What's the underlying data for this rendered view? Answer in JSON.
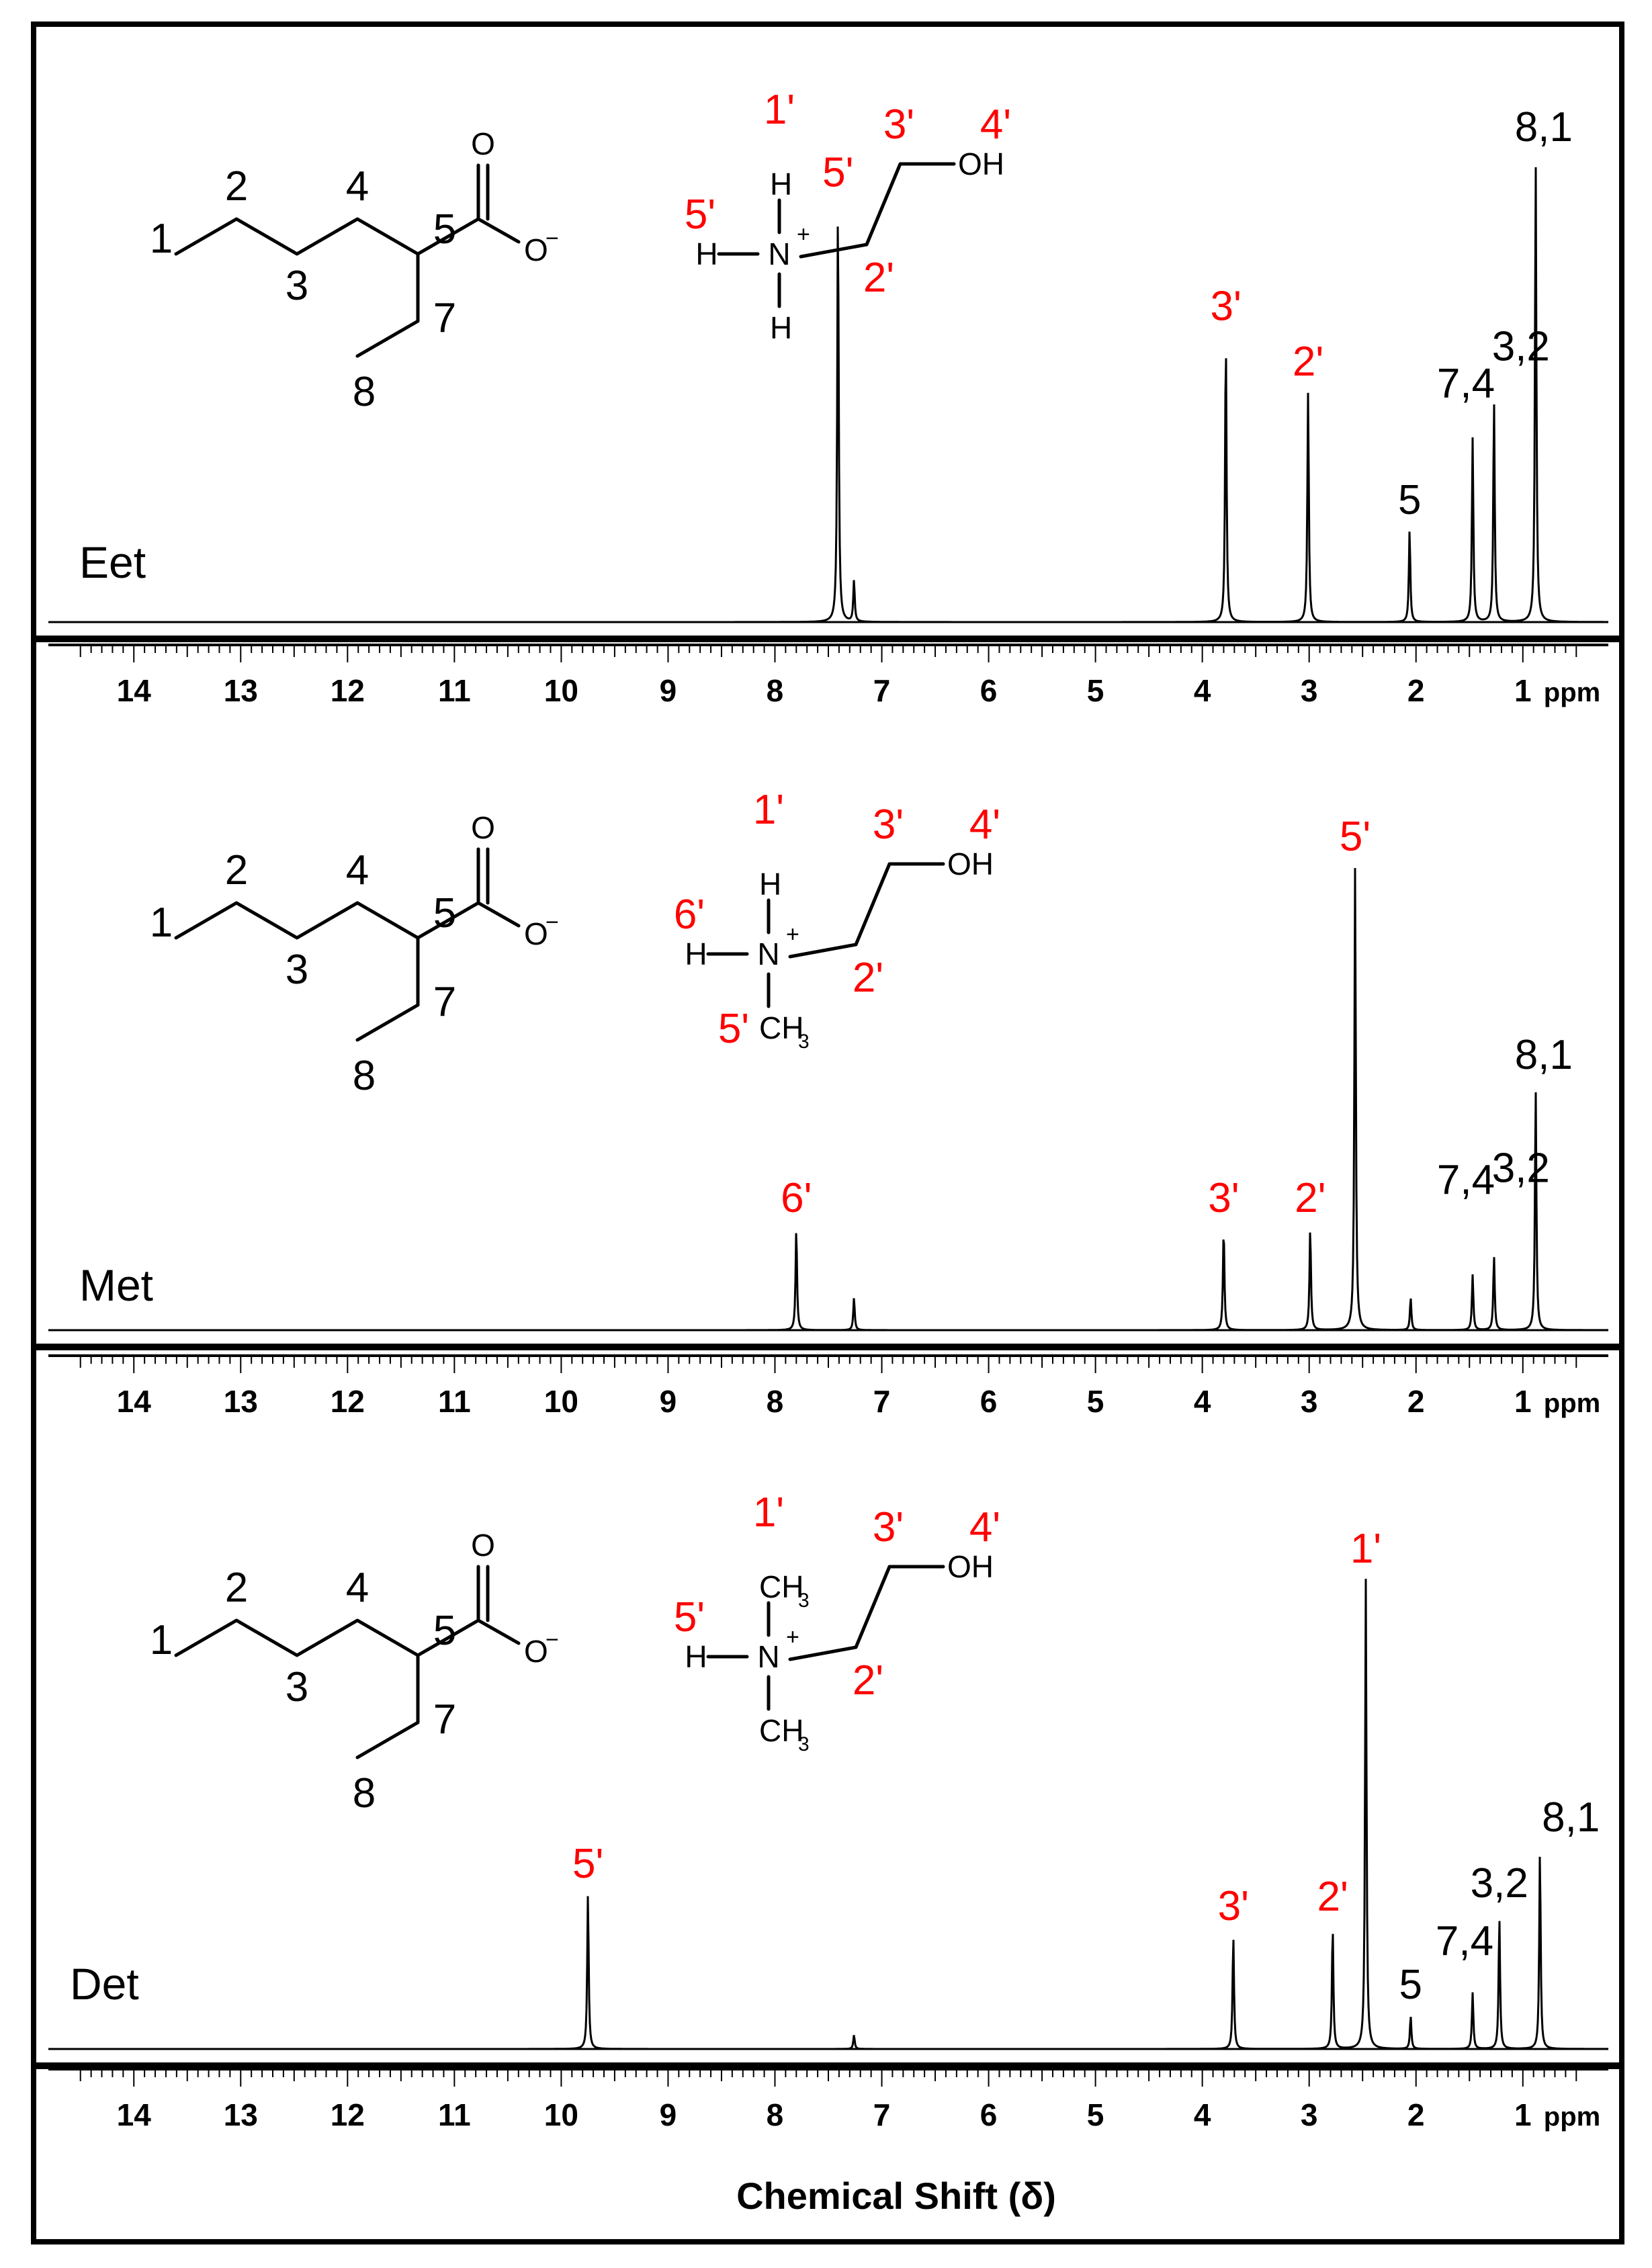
{
  "chart_data": {
    "type": "line",
    "xlabel": "Chemical Shift (δ)",
    "x_unit": "ppm",
    "xlim": [
      14.8,
      0.2
    ],
    "x_ticks": [
      "14",
      "13",
      "12",
      "11",
      "10",
      "9",
      "8",
      "7",
      "6",
      "5",
      "4",
      "3",
      "2",
      "1"
    ],
    "spectra": [
      {
        "name": "Eet",
        "peaks": [
          {
            "shift": 7.41,
            "height": 0.91,
            "label": "5'",
            "color": "#ff0000"
          },
          {
            "shift": 7.26,
            "height": 0.09,
            "label": "",
            "color": "#000000"
          },
          {
            "shift": 3.78,
            "height": 0.62,
            "label": "3'",
            "color": "#ff0000"
          },
          {
            "shift": 3.01,
            "height": 0.5,
            "label": "2'",
            "color": "#ff0000"
          },
          {
            "shift": 2.06,
            "height": 0.2,
            "label": "5",
            "color": "#000000"
          },
          {
            "shift": 1.47,
            "height": 0.4,
            "label": "7,4",
            "color": "#000000"
          },
          {
            "shift": 1.27,
            "height": 0.48,
            "label": "3,2",
            "color": "#000000"
          },
          {
            "shift": 0.88,
            "height": 1.0,
            "label": "8,1",
            "color": "#000000"
          }
        ],
        "cation": {
          "substituents": [
            "H",
            "H",
            "H"
          ],
          "labels": [
            "1'",
            "5'",
            "3'",
            "4'",
            "2'"
          ]
        },
        "anion_labels": [
          "1",
          "2",
          "3",
          "4",
          "5",
          "7",
          "8"
        ]
      },
      {
        "name": "Met",
        "peaks": [
          {
            "shift": 7.8,
            "height": 0.22,
            "label": "6'",
            "color": "#ff0000"
          },
          {
            "shift": 7.26,
            "height": 0.07,
            "label": "",
            "color": "#000000"
          },
          {
            "shift": 3.8,
            "height": 0.22,
            "label": "3'",
            "color": "#ff0000"
          },
          {
            "shift": 2.99,
            "height": 0.22,
            "label": "2'",
            "color": "#ff0000"
          },
          {
            "shift": 2.57,
            "height": 1.0,
            "label": "5'",
            "color": "#ff0000"
          },
          {
            "shift": 2.05,
            "height": 0.07,
            "label": "",
            "color": "#000000"
          },
          {
            "shift": 1.47,
            "height": 0.12,
            "label": "7,4",
            "color": "#000000"
          },
          {
            "shift": 1.27,
            "height": 0.16,
            "label": "3,2",
            "color": "#000000"
          },
          {
            "shift": 0.88,
            "height": 0.52,
            "label": "8,1",
            "color": "#000000"
          }
        ],
        "cation": {
          "substituents": [
            "H",
            "H",
            "CH3"
          ],
          "labels": [
            "1'",
            "6'",
            "3'",
            "4'",
            "2'",
            "5'"
          ]
        },
        "anion_labels": [
          "1",
          "2",
          "3",
          "4",
          "5",
          "7",
          "8"
        ]
      },
      {
        "name": "Det",
        "peaks": [
          {
            "shift": 9.75,
            "height": 0.33,
            "label": "5'",
            "color": "#ff0000"
          },
          {
            "shift": 7.26,
            "height": 0.03,
            "label": "",
            "color": "#000000"
          },
          {
            "shift": 3.71,
            "height": 0.24,
            "label": "3'",
            "color": "#ff0000"
          },
          {
            "shift": 2.78,
            "height": 0.26,
            "label": "2'",
            "color": "#ff0000"
          },
          {
            "shift": 2.47,
            "height": 1.0,
            "label": "1'",
            "color": "#ff0000"
          },
          {
            "shift": 2.05,
            "height": 0.07,
            "label": "5",
            "color": "#000000"
          },
          {
            "shift": 1.47,
            "height": 0.12,
            "label": "7,4",
            "color": "#000000"
          },
          {
            "shift": 1.22,
            "height": 0.28,
            "label": "3,2",
            "color": "#000000"
          },
          {
            "shift": 0.84,
            "height": 0.42,
            "label": "8,1",
            "color": "#000000"
          }
        ],
        "cation": {
          "substituents": [
            "CH3",
            "H",
            "CH3"
          ],
          "labels": [
            "1'",
            "5'",
            "3'",
            "4'",
            "2'"
          ]
        },
        "anion_labels": [
          "1",
          "2",
          "3",
          "4",
          "5",
          "7",
          "8"
        ]
      }
    ],
    "atoms": {
      "oxygen": "O",
      "hydroxyl": "OH",
      "nitrogen": "N",
      "hydrogen": "H",
      "methyl": "CH",
      "methyl_subscript": "3",
      "plus": "+",
      "minus": "−"
    },
    "ppm_label": "ppm",
    "grid": false,
    "line_color": "#000000",
    "label_color_cation": "#ff0000",
    "label_color_anion": "#000000"
  }
}
